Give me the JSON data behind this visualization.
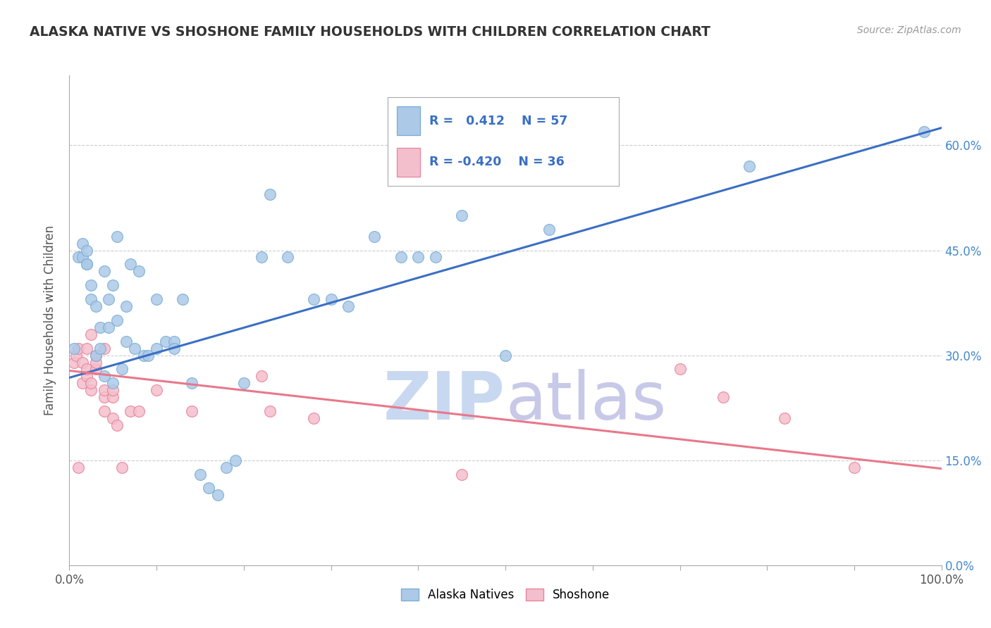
{
  "title": "ALASKA NATIVE VS SHOSHONE FAMILY HOUSEHOLDS WITH CHILDREN CORRELATION CHART",
  "source": "Source: ZipAtlas.com",
  "ylabel": "Family Households with Children",
  "xlim": [
    0,
    1.0
  ],
  "ylim": [
    0,
    0.7
  ],
  "x_ticks": [
    0.0,
    0.1,
    0.2,
    0.3,
    0.4,
    0.5,
    0.6,
    0.7,
    0.8,
    0.9,
    1.0
  ],
  "y_ticks": [
    0.0,
    0.15,
    0.3,
    0.45,
    0.6
  ],
  "y_tick_labels_right": [
    "0.0%",
    "15.0%",
    "30.0%",
    "45.0%",
    "60.0%"
  ],
  "alaska_color": "#adc9e8",
  "alaska_edge": "#7aafd4",
  "shoshone_color": "#f4bfcc",
  "shoshone_edge": "#e8849e",
  "line_blue": "#3a6fc4",
  "line_pink": "#e8788a",
  "alaska_x": [
    0.005,
    0.01,
    0.015,
    0.015,
    0.02,
    0.02,
    0.02,
    0.025,
    0.025,
    0.03,
    0.03,
    0.035,
    0.035,
    0.04,
    0.04,
    0.045,
    0.045,
    0.05,
    0.05,
    0.055,
    0.055,
    0.06,
    0.065,
    0.065,
    0.07,
    0.075,
    0.08,
    0.085,
    0.09,
    0.1,
    0.1,
    0.11,
    0.12,
    0.12,
    0.13,
    0.14,
    0.15,
    0.16,
    0.17,
    0.18,
    0.19,
    0.2,
    0.22,
    0.23,
    0.25,
    0.28,
    0.3,
    0.32,
    0.35,
    0.38,
    0.4,
    0.42,
    0.45,
    0.5,
    0.55,
    0.78,
    0.98
  ],
  "alaska_y": [
    0.31,
    0.44,
    0.44,
    0.46,
    0.43,
    0.43,
    0.45,
    0.38,
    0.4,
    0.3,
    0.37,
    0.31,
    0.34,
    0.27,
    0.42,
    0.34,
    0.38,
    0.26,
    0.4,
    0.35,
    0.47,
    0.28,
    0.32,
    0.37,
    0.43,
    0.31,
    0.42,
    0.3,
    0.3,
    0.38,
    0.31,
    0.32,
    0.32,
    0.31,
    0.38,
    0.26,
    0.13,
    0.11,
    0.1,
    0.14,
    0.15,
    0.26,
    0.44,
    0.53,
    0.44,
    0.38,
    0.38,
    0.37,
    0.47,
    0.44,
    0.44,
    0.44,
    0.5,
    0.3,
    0.48,
    0.57,
    0.62
  ],
  "shoshone_x": [
    0.005,
    0.008,
    0.01,
    0.01,
    0.015,
    0.015,
    0.02,
    0.02,
    0.02,
    0.025,
    0.025,
    0.025,
    0.03,
    0.03,
    0.03,
    0.04,
    0.04,
    0.04,
    0.04,
    0.05,
    0.05,
    0.05,
    0.055,
    0.06,
    0.07,
    0.08,
    0.1,
    0.14,
    0.22,
    0.23,
    0.28,
    0.45,
    0.7,
    0.75,
    0.82,
    0.9
  ],
  "shoshone_y": [
    0.29,
    0.3,
    0.14,
    0.31,
    0.26,
    0.29,
    0.27,
    0.28,
    0.31,
    0.25,
    0.26,
    0.33,
    0.28,
    0.29,
    0.3,
    0.22,
    0.24,
    0.25,
    0.31,
    0.21,
    0.24,
    0.25,
    0.2,
    0.14,
    0.22,
    0.22,
    0.25,
    0.22,
    0.27,
    0.22,
    0.21,
    0.13,
    0.28,
    0.24,
    0.21,
    0.14
  ],
  "blue_line_x": [
    0.0,
    1.0
  ],
  "blue_line_y": [
    0.268,
    0.625
  ],
  "pink_line_x": [
    0.0,
    1.0
  ],
  "pink_line_y": [
    0.278,
    0.138
  ],
  "watermark_zip_color": "#c8d8f0",
  "watermark_atlas_color": "#c8c8e8",
  "legend_label_alaska": "Alaska Natives",
  "legend_label_shoshone": "Shoshone",
  "background_color": "#ffffff",
  "grid_color": "#cccccc"
}
